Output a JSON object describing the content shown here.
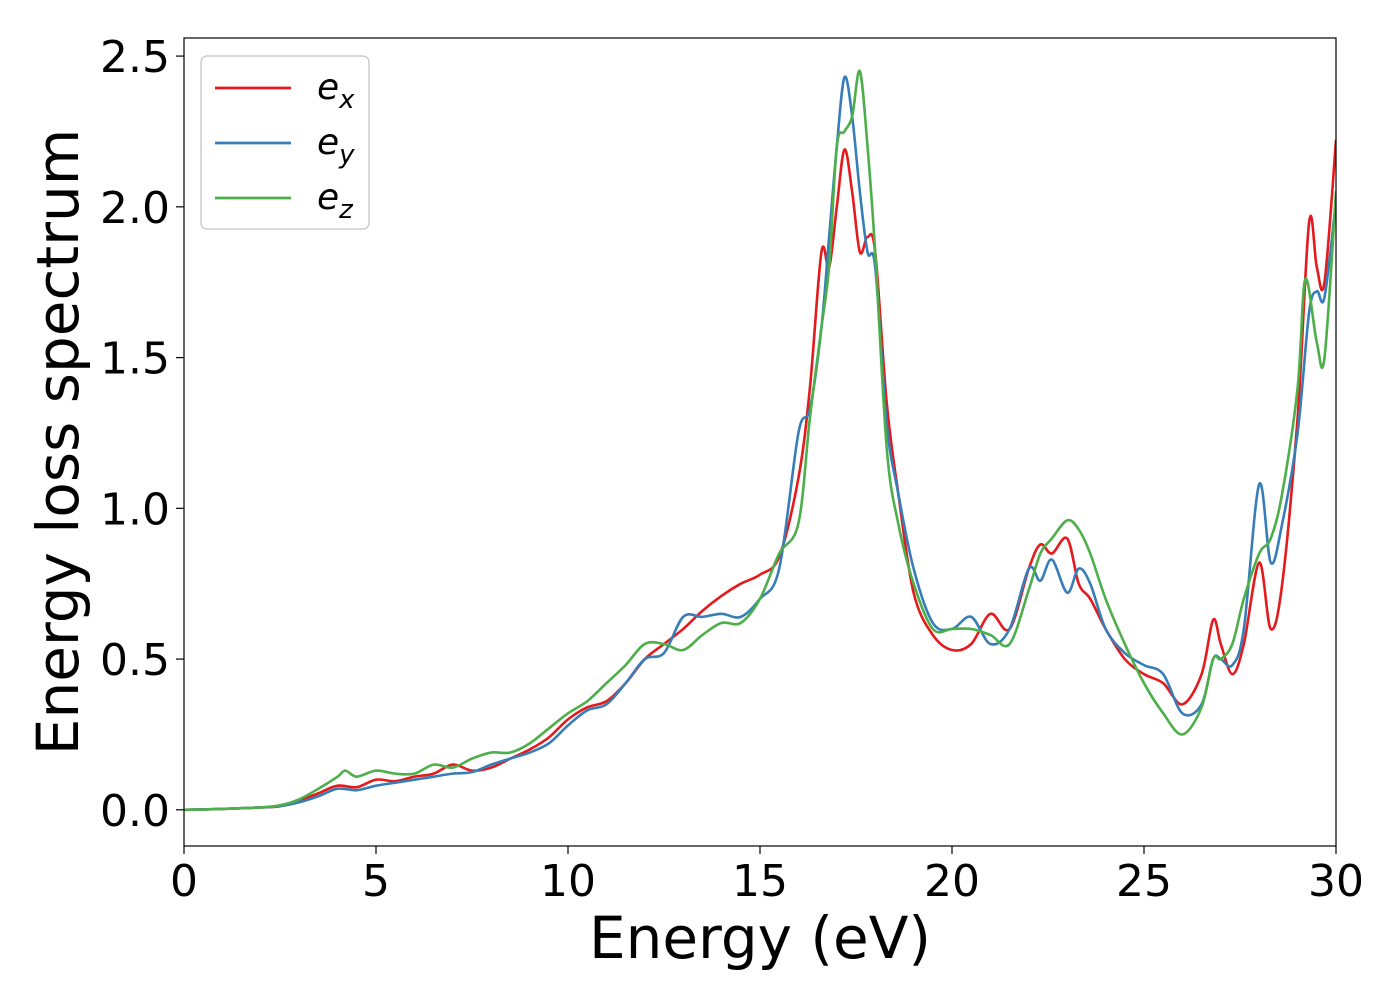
{
  "chart_data": {
    "type": "line",
    "xlabel": "Energy (eV)",
    "ylabel": "Energy loss spectrum",
    "xlim": [
      0,
      30
    ],
    "ylim": [
      -0.12,
      2.56
    ],
    "xticks": [
      "0",
      "5",
      "10",
      "15",
      "20",
      "25",
      "30"
    ],
    "yticks": [
      "0.0",
      "0.5",
      "1.0",
      "1.5",
      "2.0",
      "2.5"
    ],
    "grid": false,
    "legend_position": "top-left",
    "series": [
      {
        "name": "e_x",
        "label_base": "e",
        "label_sub": "x",
        "color": "#e41a1c",
        "x": [
          0,
          1,
          2,
          2.5,
          3,
          3.5,
          4,
          4.5,
          5,
          5.5,
          6,
          6.5,
          7,
          7.5,
          8,
          8.5,
          9,
          9.5,
          10,
          10.5,
          11,
          11.5,
          12,
          12.5,
          13,
          13.5,
          14,
          14.5,
          15,
          15.5,
          16,
          16.3,
          16.6,
          16.8,
          17,
          17.2,
          17.4,
          17.6,
          17.8,
          18,
          18.3,
          18.6,
          19,
          19.5,
          20,
          20.5,
          21,
          21.5,
          22,
          22.3,
          22.6,
          23,
          23.3,
          23.6,
          24,
          24.5,
          25,
          25.5,
          26,
          26.5,
          26.8,
          27,
          27.3,
          27.6,
          28,
          28.3,
          28.6,
          29,
          29.3,
          29.5,
          29.7,
          30
        ],
        "y": [
          0,
          0.003,
          0.008,
          0.012,
          0.03,
          0.055,
          0.08,
          0.075,
          0.1,
          0.095,
          0.11,
          0.12,
          0.15,
          0.13,
          0.14,
          0.17,
          0.2,
          0.24,
          0.3,
          0.34,
          0.36,
          0.42,
          0.5,
          0.55,
          0.6,
          0.66,
          0.71,
          0.75,
          0.78,
          0.84,
          1.1,
          1.4,
          1.85,
          1.8,
          2.0,
          2.19,
          2.05,
          1.85,
          1.9,
          1.85,
          1.35,
          1.05,
          0.72,
          0.58,
          0.53,
          0.55,
          0.65,
          0.6,
          0.8,
          0.88,
          0.85,
          0.9,
          0.75,
          0.7,
          0.6,
          0.5,
          0.45,
          0.42,
          0.35,
          0.45,
          0.63,
          0.55,
          0.45,
          0.55,
          0.82,
          0.6,
          0.75,
          1.3,
          1.95,
          1.8,
          1.75,
          2.22
        ]
      },
      {
        "name": "e_y",
        "label_base": "e",
        "label_sub": "y",
        "color": "#377eb8",
        "x": [
          0,
          1,
          2,
          2.5,
          3,
          3.5,
          4,
          4.5,
          5,
          5.5,
          6,
          6.5,
          7,
          7.5,
          8,
          8.5,
          9,
          9.5,
          10,
          10.5,
          11,
          11.5,
          12,
          12.5,
          13,
          13.5,
          14,
          14.5,
          15,
          15.5,
          16,
          16.3,
          16.6,
          16.8,
          17,
          17.2,
          17.4,
          17.6,
          17.8,
          18,
          18.3,
          18.6,
          19,
          19.5,
          20,
          20.5,
          21,
          21.5,
          22,
          22.3,
          22.6,
          23,
          23.3,
          23.6,
          24,
          24.5,
          25,
          25.5,
          26,
          26.5,
          26.8,
          27,
          27.3,
          27.6,
          28,
          28.3,
          28.6,
          29,
          29.3,
          29.5,
          29.7,
          30
        ],
        "y": [
          0,
          0.003,
          0.008,
          0.012,
          0.025,
          0.045,
          0.07,
          0.065,
          0.08,
          0.09,
          0.1,
          0.11,
          0.12,
          0.125,
          0.15,
          0.17,
          0.19,
          0.22,
          0.28,
          0.33,
          0.35,
          0.42,
          0.5,
          0.52,
          0.64,
          0.64,
          0.65,
          0.64,
          0.7,
          0.8,
          1.25,
          1.33,
          1.6,
          1.9,
          2.2,
          2.43,
          2.3,
          2.05,
          1.85,
          1.8,
          1.28,
          1.05,
          0.8,
          0.62,
          0.6,
          0.64,
          0.55,
          0.6,
          0.8,
          0.76,
          0.83,
          0.72,
          0.8,
          0.75,
          0.6,
          0.52,
          0.48,
          0.45,
          0.32,
          0.35,
          0.5,
          0.5,
          0.48,
          0.6,
          1.08,
          0.82,
          0.95,
          1.25,
          1.65,
          1.72,
          1.7,
          2.02
        ]
      },
      {
        "name": "e_z",
        "label_base": "e",
        "label_sub": "z",
        "color": "#4daf4a",
        "x": [
          0,
          1,
          2,
          2.5,
          3,
          3.5,
          4,
          4.2,
          4.5,
          5,
          5.5,
          6,
          6.5,
          7,
          7.5,
          8,
          8.5,
          9,
          9.5,
          10,
          10.5,
          11,
          11.5,
          12,
          12.5,
          13,
          13.5,
          14,
          14.5,
          15,
          15.5,
          16,
          16.3,
          16.6,
          16.8,
          17,
          17.2,
          17.4,
          17.6,
          17.8,
          18,
          18.3,
          18.6,
          19,
          19.5,
          20,
          20.5,
          21,
          21.5,
          22,
          22.3,
          22.6,
          23,
          23.3,
          23.6,
          24,
          24.5,
          25,
          25.5,
          26,
          26.5,
          26.8,
          27,
          27.3,
          27.6,
          28,
          28.3,
          28.6,
          29,
          29.2,
          29.5,
          29.7,
          30
        ],
        "y": [
          0,
          0.003,
          0.008,
          0.015,
          0.035,
          0.07,
          0.11,
          0.13,
          0.11,
          0.13,
          0.12,
          0.12,
          0.15,
          0.14,
          0.17,
          0.19,
          0.19,
          0.22,
          0.27,
          0.32,
          0.36,
          0.42,
          0.48,
          0.55,
          0.55,
          0.53,
          0.58,
          0.62,
          0.62,
          0.7,
          0.85,
          0.95,
          1.3,
          1.6,
          1.8,
          2.2,
          2.25,
          2.3,
          2.45,
          2.2,
          1.85,
          1.2,
          0.95,
          0.75,
          0.6,
          0.6,
          0.6,
          0.58,
          0.55,
          0.73,
          0.85,
          0.9,
          0.96,
          0.93,
          0.85,
          0.7,
          0.55,
          0.42,
          0.32,
          0.25,
          0.34,
          0.5,
          0.5,
          0.55,
          0.7,
          0.85,
          0.9,
          1.05,
          1.4,
          1.76,
          1.55,
          1.5,
          2.05
        ]
      }
    ]
  }
}
